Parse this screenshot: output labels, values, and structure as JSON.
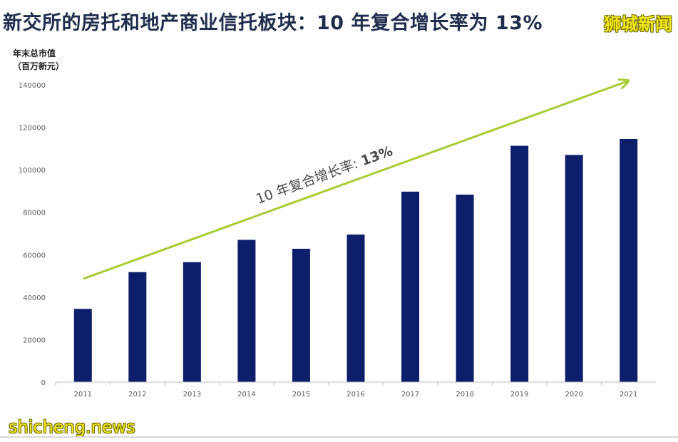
{
  "title": "新交所的房托和地产商业信托板块：10 年复合增长率为 13%",
  "watermark_top": "狮城新闻",
  "watermark_bottom": "shicheng.news",
  "colors": {
    "bar": "#0d1f6b",
    "trend": "#a6cc34",
    "title": "#1f2d4d",
    "axis": "#bfbfbf",
    "tick": "#595959"
  },
  "chart_data": {
    "type": "bar",
    "ylabel_line1": "年末总市值",
    "ylabel_line2": "（百万新元）",
    "categories": [
      "2011",
      "2012",
      "2013",
      "2014",
      "2015",
      "2016",
      "2017",
      "2018",
      "2019",
      "2020",
      "2021"
    ],
    "values": [
      34500,
      51800,
      56500,
      67000,
      62800,
      69500,
      89700,
      88300,
      111300,
      107000,
      114500
    ],
    "ylim": [
      0,
      140000
    ],
    "yticks": [
      0,
      20000,
      40000,
      60000,
      80000,
      100000,
      120000,
      140000
    ],
    "grid": false,
    "annotation": {
      "text": "10 年复合增长率: ",
      "value_text": "13%"
    }
  }
}
